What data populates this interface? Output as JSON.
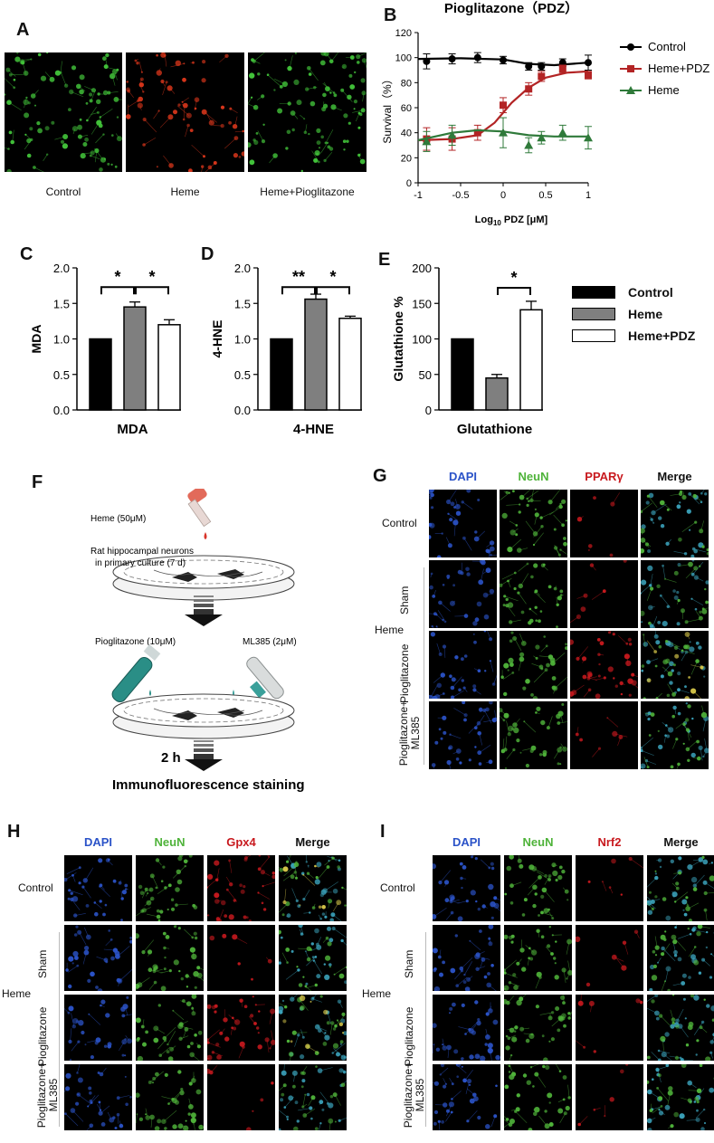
{
  "panels": {
    "A": {
      "label": "A",
      "captions": [
        "Control",
        "Heme",
        "Heme+Pioglitazone"
      ]
    },
    "B": {
      "label": "B",
      "title": "Pioglitazone（PDZ）",
      "ylabel": "Survival（%）",
      "xlabel_prefix": "Log",
      "xlabel_sub": "10",
      "xlabel_suffix": " PDZ [μM]",
      "legend": [
        "Control",
        "Heme+PDZ",
        "Heme"
      ]
    },
    "C": {
      "label": "C",
      "ylabel": "MDA",
      "xlabel": "MDA",
      "sig": [
        "*",
        "*"
      ]
    },
    "D": {
      "label": "D",
      "ylabel": "4-HNE",
      "xlabel": "4-HNE",
      "sig": [
        "**",
        "*"
      ]
    },
    "E": {
      "label": "E",
      "ylabel": "Glutathione %",
      "xlabel": "Glutathione",
      "sig": [
        "*"
      ]
    },
    "bar_legend": [
      "Control",
      "Heme",
      "Heme+PDZ"
    ],
    "F": {
      "label": "F",
      "heme": "Heme (50μM)",
      "cells_line1": "Rat hippocampal neurons",
      "cells_line2": "in primary culture (7 d)",
      "pio": "Pioglitazone  (10μM)",
      "ml385": "ML385  (2μM)",
      "time": "2 h",
      "stain": "Immunofluorescence staining"
    },
    "G": {
      "label": "G",
      "cols": [
        "DAPI",
        "NeuN",
        "PPARγ",
        "Merge"
      ],
      "rows": [
        "Control",
        "Sham",
        "Pioglitazone",
        "Pioglitazone+ ML385"
      ],
      "group": "Heme"
    },
    "H": {
      "label": "H",
      "cols": [
        "DAPI",
        "NeuN",
        "Gpx4",
        "Merge"
      ],
      "rows": [
        "Control",
        "Sham",
        "Pioglitazone",
        "Pioglitazone+ ML385"
      ],
      "group": "Heme"
    },
    "I": {
      "label": "I",
      "cols": [
        "DAPI",
        "NeuN",
        "Nrf2",
        "Merge"
      ],
      "rows": [
        "Control",
        "Sham",
        "Pioglitazone",
        "Pioglitazone+ ML385"
      ],
      "group": "Heme"
    }
  },
  "colors": {
    "dapi": "#2b53c8",
    "neun": "#4fb33a",
    "red": "#c8191e",
    "control": "#000000",
    "heme_pdz": "#b32425",
    "heme": "#2f7a3a",
    "bar_heme": "#7f7f7f"
  },
  "chart_data": [
    {
      "id": "B",
      "type": "line",
      "title": "Pioglitazone（PDZ）",
      "xlabel": "Log10 PDZ [μM]",
      "ylabel": "Survival（%）",
      "xlim": [
        -1,
        1
      ],
      "ylim": [
        0,
        120
      ],
      "xticks": [
        -1,
        -0.5,
        0,
        0.5,
        1
      ],
      "yticks": [
        0,
        20,
        40,
        60,
        80,
        100,
        120
      ],
      "series": [
        {
          "name": "Control",
          "marker": "circle",
          "x": [
            -0.9,
            -0.6,
            -0.3,
            0,
            0.3,
            0.45,
            0.7,
            1.0
          ],
          "y": [
            97,
            99,
            100,
            98,
            93,
            93,
            96,
            96
          ],
          "err": [
            6,
            4,
            4,
            3,
            3,
            3,
            3,
            6
          ],
          "fit": [
            [
              -1,
              99
            ],
            [
              -0.5,
              99.5
            ],
            [
              0,
              98.5
            ],
            [
              0.3,
              95
            ],
            [
              0.6,
              94
            ],
            [
              1,
              96
            ]
          ]
        },
        {
          "name": "Heme+PDZ",
          "marker": "square",
          "x": [
            -0.9,
            -0.6,
            -0.3,
            0,
            0.3,
            0.45,
            0.7,
            1.0
          ],
          "y": [
            35,
            35,
            40,
            62,
            75,
            85,
            91,
            86
          ],
          "err": [
            9,
            9,
            6,
            6,
            5,
            4,
            3,
            3
          ],
          "fit": [
            [
              -1,
              34
            ],
            [
              -0.6,
              35
            ],
            [
              -0.3,
              38
            ],
            [
              -0.1,
              48
            ],
            [
              0.1,
              64
            ],
            [
              0.3,
              76
            ],
            [
              0.5,
              84
            ],
            [
              0.75,
              88
            ],
            [
              1,
              89
            ]
          ]
        },
        {
          "name": "Heme",
          "marker": "triangle",
          "x": [
            -0.9,
            -0.6,
            0,
            0.3,
            0.45,
            0.7,
            1.0
          ],
          "y": [
            33,
            38,
            40,
            30,
            36,
            40,
            36
          ],
          "err": [
            8,
            8,
            12,
            6,
            5,
            6,
            9
          ],
          "fit": [
            [
              -1,
              34
            ],
            [
              -0.6,
              40
            ],
            [
              -0.3,
              42
            ],
            [
              0,
              41
            ],
            [
              0.3,
              38
            ],
            [
              0.6,
              37
            ],
            [
              1,
              37
            ]
          ]
        }
      ]
    },
    {
      "id": "C",
      "type": "bar",
      "ylabel": "MDA",
      "xlabel": "MDA",
      "categories": [
        "Control",
        "Heme",
        "Heme+PDZ"
      ],
      "values": [
        1.0,
        1.45,
        1.2
      ],
      "err": [
        0,
        0.07,
        0.07
      ],
      "ylim": [
        0,
        2.0
      ],
      "yticks": [
        0,
        0.5,
        1.0,
        1.5,
        2.0
      ]
    },
    {
      "id": "D",
      "type": "bar",
      "ylabel": "4-HNE",
      "xlabel": "4-HNE",
      "categories": [
        "Control",
        "Heme",
        "Heme+PDZ"
      ],
      "values": [
        1.0,
        1.56,
        1.29
      ],
      "err": [
        0,
        0.07,
        0.03
      ],
      "ylim": [
        0,
        2.0
      ],
      "yticks": [
        0,
        0.5,
        1.0,
        1.5,
        2.0
      ]
    },
    {
      "id": "E",
      "type": "bar",
      "ylabel": "Glutathione %",
      "xlabel": "Glutathione",
      "categories": [
        "Control",
        "Heme",
        "Heme+PDZ"
      ],
      "values": [
        100,
        45,
        141
      ],
      "err": [
        0,
        5,
        12
      ],
      "ylim": [
        0,
        200
      ],
      "yticks": [
        0,
        50,
        100,
        150,
        200
      ]
    }
  ]
}
